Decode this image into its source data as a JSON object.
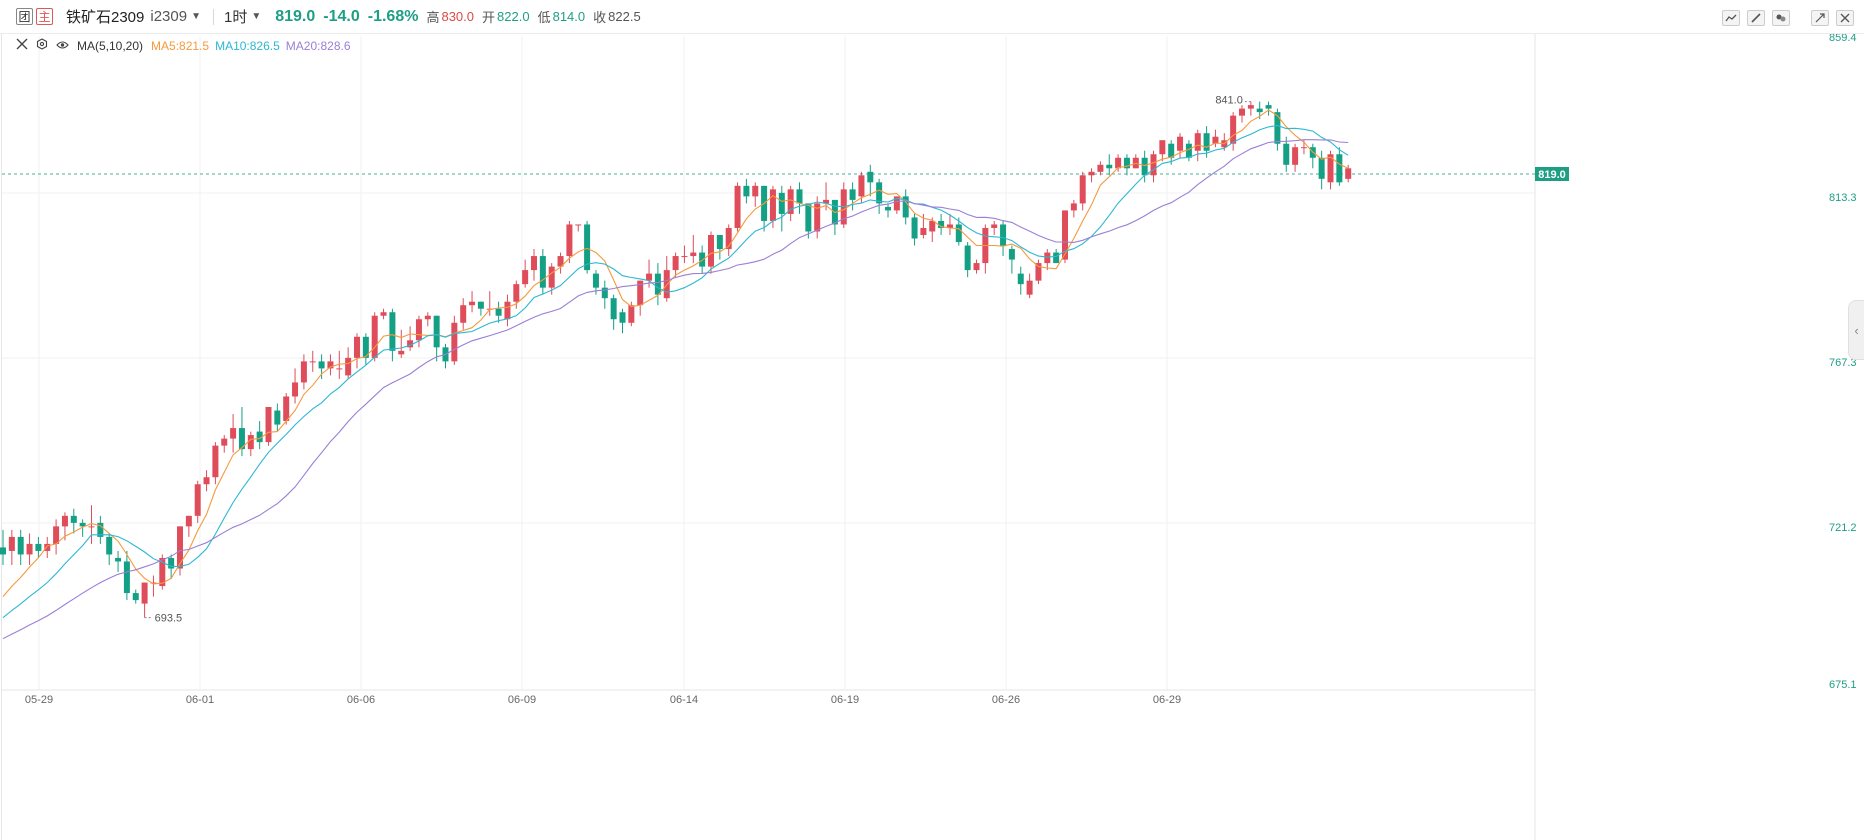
{
  "header": {
    "badge_left": "团",
    "badge_main": "主",
    "symbol": "铁矿石2309",
    "code": "i2309",
    "period": "1时",
    "price": "819.0",
    "change": "-14.0",
    "change_pct": "-1.68%",
    "high_label": "高",
    "high": "830.0",
    "open_label": "开",
    "open": "822.0",
    "low_label": "低",
    "low": "814.0",
    "close_label": "收",
    "close": "822.5"
  },
  "indicator": {
    "name": "MA(5,10,20)",
    "ma5": "MA5:821.5",
    "ma10": "MA10:826.5",
    "ma20": "MA20:828.6"
  },
  "colors": {
    "up": "#df4c5a",
    "down": "#14a085",
    "ma5": "#f59a3d",
    "ma10": "#2cb8d1",
    "ma20": "#9b7fd6",
    "current_price_tag": "#1e9f85"
  },
  "chart_data": {
    "type": "candlestick",
    "y_axis_labels": [
      "859.4",
      "813.3",
      "767.3",
      "721.2",
      "675.1"
    ],
    "x_axis_labels": [
      "05-29",
      "06-01",
      "06-06",
      "06-09",
      "06-14",
      "06-19",
      "06-26",
      "06-29"
    ],
    "current_price_label": "819.0",
    "ylim": [
      675.1,
      859.4
    ],
    "annotations": {
      "high": "841.0",
      "low": "693.5"
    },
    "candles": [
      [
        714,
        712,
        709,
        719
      ],
      [
        713,
        717,
        709,
        719
      ],
      [
        717,
        712,
        709,
        719
      ],
      [
        712,
        715,
        709,
        718
      ],
      [
        715,
        713,
        711,
        717
      ],
      [
        713,
        715,
        711,
        717
      ],
      [
        715,
        720,
        712,
        722
      ],
      [
        720,
        723,
        716,
        724
      ],
      [
        723,
        721,
        718,
        725
      ],
      [
        721,
        720,
        717,
        722
      ],
      [
        720,
        720,
        715,
        726
      ],
      [
        721,
        717,
        715,
        723
      ],
      [
        717,
        712,
        709,
        718
      ],
      [
        711,
        710,
        707,
        713
      ],
      [
        710,
        701,
        699,
        713
      ],
      [
        701,
        699,
        698,
        702
      ],
      [
        698,
        704,
        694,
        704
      ],
      [
        704,
        704,
        700,
        706
      ],
      [
        703,
        711,
        702,
        712
      ],
      [
        711,
        708,
        705,
        712
      ],
      [
        708,
        720,
        706,
        720
      ],
      [
        720,
        723,
        717,
        723
      ],
      [
        723,
        732,
        721,
        733
      ],
      [
        732,
        734,
        730,
        736
      ],
      [
        734,
        743,
        732,
        744
      ],
      [
        743,
        745,
        741,
        746
      ],
      [
        745,
        748,
        741,
        752
      ],
      [
        748,
        742,
        740,
        754
      ],
      [
        742,
        746,
        740,
        747
      ],
      [
        747,
        744,
        742,
        750
      ],
      [
        744,
        754,
        743,
        754
      ],
      [
        753,
        749,
        747,
        755
      ],
      [
        750,
        757,
        749,
        758
      ],
      [
        757,
        761,
        755,
        765
      ],
      [
        761,
        767,
        759,
        769
      ],
      [
        767,
        767,
        764,
        770
      ],
      [
        767,
        765,
        762,
        769
      ],
      [
        765,
        767,
        763,
        769
      ],
      [
        765,
        765,
        762,
        770
      ],
      [
        763,
        768,
        762,
        771
      ],
      [
        768,
        774,
        765,
        775
      ],
      [
        774,
        768,
        766,
        775
      ],
      [
        768,
        780,
        767,
        781
      ],
      [
        780,
        781,
        779,
        782
      ],
      [
        781,
        770,
        767,
        782
      ],
      [
        769,
        770,
        768,
        776
      ],
      [
        771,
        773,
        770,
        777
      ],
      [
        773,
        779,
        771,
        780
      ],
      [
        779,
        780,
        777,
        781
      ],
      [
        780,
        771,
        767,
        780
      ],
      [
        771,
        767,
        765,
        772
      ],
      [
        767,
        778,
        766,
        780
      ],
      [
        778,
        783,
        776,
        785
      ],
      [
        783,
        784,
        781,
        787
      ],
      [
        784,
        782,
        780,
        784
      ],
      [
        782,
        782,
        780,
        787
      ],
      [
        782,
        780,
        778,
        784
      ],
      [
        779,
        784,
        777,
        786
      ],
      [
        784,
        789,
        782,
        790
      ],
      [
        789,
        793,
        788,
        796
      ],
      [
        793,
        797,
        790,
        799
      ],
      [
        797,
        788,
        786,
        799
      ],
      [
        788,
        794,
        786,
        795
      ],
      [
        794,
        797,
        792,
        798
      ],
      [
        797,
        806,
        795,
        807
      ],
      [
        806,
        806,
        804,
        806
      ],
      [
        806,
        793,
        792,
        807
      ],
      [
        792,
        788,
        786,
        793
      ],
      [
        788,
        785,
        782,
        790
      ],
      [
        785,
        779,
        776,
        786
      ],
      [
        781,
        778,
        775,
        782
      ],
      [
        778,
        783,
        777,
        784
      ],
      [
        783,
        790,
        780,
        790
      ],
      [
        790,
        792,
        788,
        796
      ],
      [
        792,
        786,
        783,
        795
      ],
      [
        785,
        793,
        784,
        797
      ],
      [
        793,
        797,
        791,
        798
      ],
      [
        797,
        797,
        795,
        800
      ],
      [
        797,
        798,
        795,
        803
      ],
      [
        798,
        794,
        792,
        800
      ],
      [
        794,
        803,
        792,
        804
      ],
      [
        803,
        799,
        796,
        803
      ],
      [
        799,
        805,
        797,
        806
      ],
      [
        805,
        817,
        804,
        818
      ],
      [
        817,
        814,
        812,
        819
      ],
      [
        814,
        817,
        811,
        818
      ],
      [
        817,
        807,
        804,
        817
      ],
      [
        807,
        816,
        805,
        817
      ],
      [
        815,
        809,
        804,
        817
      ],
      [
        809,
        816,
        807,
        817
      ],
      [
        816,
        812,
        809,
        818
      ],
      [
        812,
        804,
        802,
        812
      ],
      [
        804,
        812,
        802,
        814
      ],
      [
        812,
        813,
        810,
        818
      ],
      [
        813,
        806,
        803,
        813
      ],
      [
        806,
        816,
        805,
        818
      ],
      [
        816,
        813,
        810,
        818
      ],
      [
        814,
        820,
        812,
        821
      ],
      [
        821,
        818,
        814,
        823
      ],
      [
        818,
        812,
        809,
        819
      ],
      [
        811,
        810,
        808,
        812
      ],
      [
        810,
        814,
        809,
        814
      ],
      [
        814,
        808,
        806,
        816
      ],
      [
        808,
        802,
        800,
        809
      ],
      [
        803,
        805,
        802,
        809
      ],
      [
        804,
        807,
        801,
        808
      ],
      [
        807,
        805,
        803,
        809
      ],
      [
        805,
        806,
        803,
        809
      ],
      [
        806,
        801,
        800,
        808
      ],
      [
        800,
        793,
        791,
        801
      ],
      [
        793,
        795,
        792,
        796
      ],
      [
        795,
        805,
        792,
        806
      ],
      [
        805,
        806,
        803,
        807
      ],
      [
        806,
        800,
        797,
        807
      ],
      [
        799,
        796,
        792,
        800
      ],
      [
        792,
        789,
        786,
        794
      ],
      [
        786,
        790,
        785,
        792
      ],
      [
        790,
        795,
        789,
        796
      ],
      [
        795,
        798,
        793,
        799
      ],
      [
        798,
        795,
        795,
        799
      ],
      [
        796,
        810,
        795,
        810
      ],
      [
        810,
        812,
        808,
        813
      ],
      [
        812,
        820,
        810,
        821
      ],
      [
        820,
        821,
        818,
        822
      ],
      [
        821,
        823,
        820,
        824
      ],
      [
        823,
        822,
        820,
        826
      ],
      [
        822,
        825,
        821,
        826
      ],
      [
        825,
        822,
        820,
        826
      ],
      [
        822,
        825,
        822,
        826
      ],
      [
        825,
        820,
        818,
        827
      ],
      [
        820,
        826,
        818,
        827
      ],
      [
        826,
        830,
        824,
        830
      ],
      [
        829,
        825,
        823,
        830
      ],
      [
        827,
        831,
        825,
        832
      ],
      [
        829,
        825,
        824,
        830
      ],
      [
        827,
        832,
        824,
        833
      ],
      [
        832,
        827,
        825,
        834
      ],
      [
        829,
        831,
        828,
        833
      ],
      [
        828,
        830,
        827,
        832
      ],
      [
        829,
        837,
        827,
        838
      ],
      [
        837,
        839,
        835,
        840
      ],
      [
        839,
        840,
        837,
        841
      ],
      [
        839,
        838,
        836,
        841
      ],
      [
        840,
        839,
        837,
        841
      ],
      [
        838,
        829,
        827,
        839
      ],
      [
        829,
        823,
        821,
        831
      ],
      [
        823,
        828,
        821,
        829
      ],
      [
        828,
        828,
        826,
        830
      ],
      [
        828,
        825,
        822,
        829
      ],
      [
        825,
        819,
        816,
        827
      ],
      [
        818,
        826,
        816,
        827
      ],
      [
        826,
        818,
        817,
        828
      ],
      [
        819,
        822,
        818,
        823
      ]
    ]
  }
}
